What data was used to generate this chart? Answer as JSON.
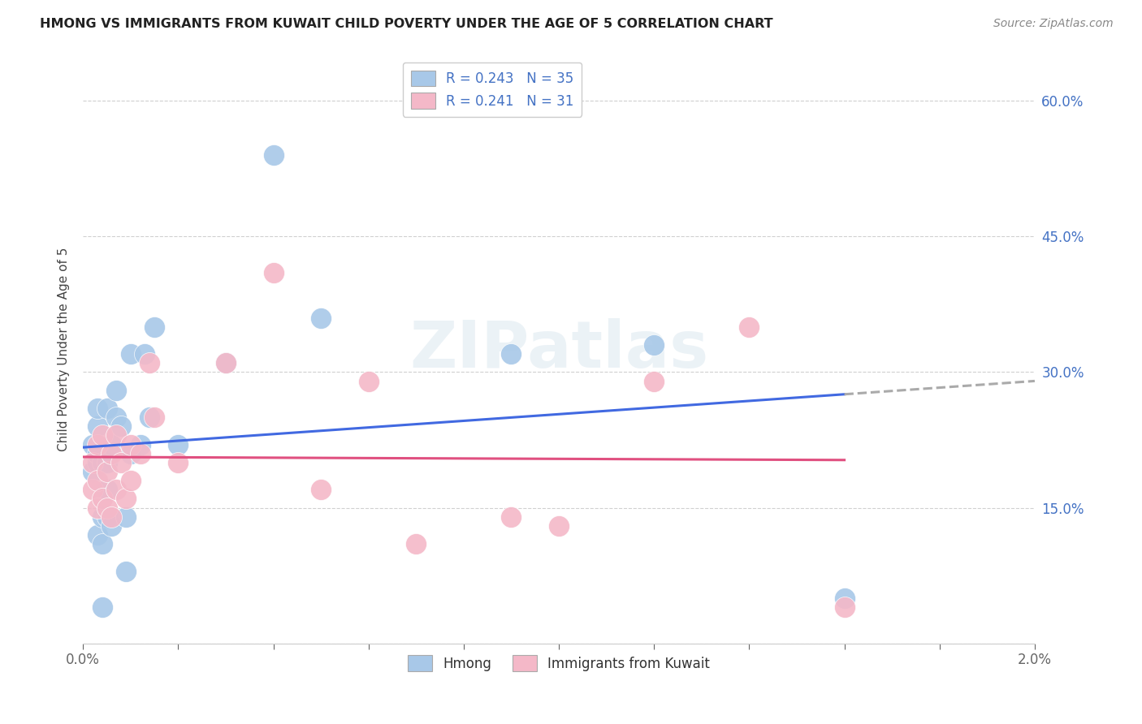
{
  "title": "HMONG VS IMMIGRANTS FROM KUWAIT CHILD POVERTY UNDER THE AGE OF 5 CORRELATION CHART",
  "source": "Source: ZipAtlas.com",
  "ylabel": "Child Poverty Under the Age of 5",
  "xlim": [
    0.0,
    0.02
  ],
  "ylim": [
    0.0,
    0.65
  ],
  "hmong_color": "#a8c8e8",
  "kuwait_color": "#f4b8c8",
  "trendline_hmong_color": "#4169e1",
  "trendline_kuwait_color": "#e05080",
  "legend_r_hmong": "R = 0.243",
  "legend_n_hmong": "N = 35",
  "legend_r_kuwait": "R = 0.241",
  "legend_n_kuwait": "N = 31",
  "watermark": "ZIPatlas",
  "hmong_x": [
    0.0002,
    0.0002,
    0.0003,
    0.0003,
    0.0003,
    0.0003,
    0.0003,
    0.0004,
    0.0004,
    0.0004,
    0.0004,
    0.0005,
    0.0005,
    0.0005,
    0.0005,
    0.0006,
    0.0006,
    0.0007,
    0.0007,
    0.0008,
    0.0009,
    0.0009,
    0.001,
    0.001,
    0.0012,
    0.0013,
    0.0014,
    0.0015,
    0.002,
    0.003,
    0.004,
    0.005,
    0.009,
    0.012,
    0.016
  ],
  "hmong_y": [
    0.19,
    0.22,
    0.12,
    0.2,
    0.21,
    0.24,
    0.26,
    0.04,
    0.11,
    0.14,
    0.2,
    0.14,
    0.17,
    0.2,
    0.26,
    0.13,
    0.22,
    0.25,
    0.28,
    0.24,
    0.08,
    0.14,
    0.21,
    0.32,
    0.22,
    0.32,
    0.25,
    0.35,
    0.22,
    0.31,
    0.54,
    0.36,
    0.32,
    0.33,
    0.05
  ],
  "kuwait_x": [
    0.0002,
    0.0002,
    0.0003,
    0.0003,
    0.0003,
    0.0004,
    0.0004,
    0.0005,
    0.0005,
    0.0006,
    0.0006,
    0.0007,
    0.0007,
    0.0008,
    0.0009,
    0.001,
    0.001,
    0.0012,
    0.0014,
    0.0015,
    0.002,
    0.003,
    0.004,
    0.005,
    0.006,
    0.007,
    0.009,
    0.01,
    0.012,
    0.014,
    0.016
  ],
  "kuwait_y": [
    0.17,
    0.2,
    0.15,
    0.18,
    0.22,
    0.16,
    0.23,
    0.15,
    0.19,
    0.14,
    0.21,
    0.17,
    0.23,
    0.2,
    0.16,
    0.18,
    0.22,
    0.21,
    0.31,
    0.25,
    0.2,
    0.31,
    0.41,
    0.17,
    0.29,
    0.11,
    0.14,
    0.13,
    0.29,
    0.35,
    0.04
  ]
}
